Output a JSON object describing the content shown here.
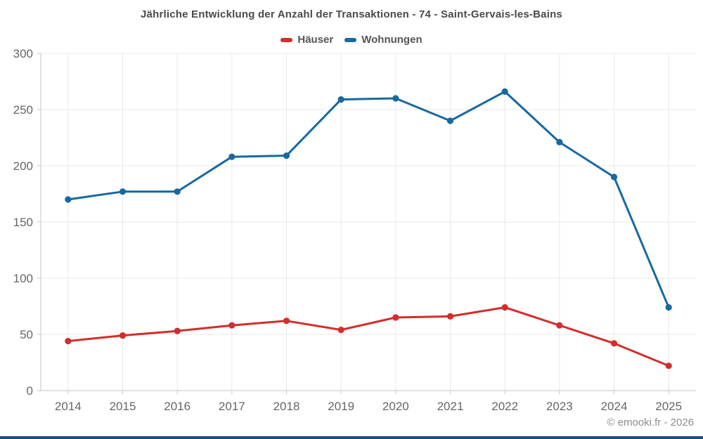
{
  "title": "Jährliche Entwicklung der Anzahl der Transaktionen - 74 - Saint-Gervais-les-Bains",
  "footer": "© emooki.fr - 2026",
  "legend": {
    "items": [
      {
        "label": "Häuser",
        "color": "#d32d2c"
      },
      {
        "label": "Wohnungen",
        "color": "#1769a0"
      }
    ]
  },
  "chart_data": {
    "type": "line",
    "title": "Jährliche Entwicklung der Anzahl der Transaktionen - 74 - Saint-Gervais-les-Bains",
    "categories": [
      "2014",
      "2015",
      "2016",
      "2017",
      "2018",
      "2019",
      "2020",
      "2021",
      "2022",
      "2023",
      "2024",
      "2025"
    ],
    "series": [
      {
        "name": "Häuser",
        "color": "#d32d2c",
        "values": [
          44,
          49,
          53,
          58,
          62,
          54,
          65,
          66,
          74,
          58,
          42,
          22
        ]
      },
      {
        "name": "Wohnungen",
        "color": "#1769a0",
        "values": [
          170,
          177,
          177,
          208,
          209,
          259,
          260,
          240,
          266,
          221,
          190,
          74
        ]
      }
    ],
    "xlabel": "",
    "ylabel": "",
    "ylim": [
      0,
      300
    ],
    "yticks": [
      0,
      50,
      100,
      150,
      200,
      250,
      300
    ],
    "grid": true,
    "legend_position": "top",
    "markers": true
  },
  "colors": {
    "bottom_bar": "#14507c",
    "grid_line": "#e8e8e8",
    "axis_line": "#c4c4c4",
    "tick_label": "#666666"
  }
}
